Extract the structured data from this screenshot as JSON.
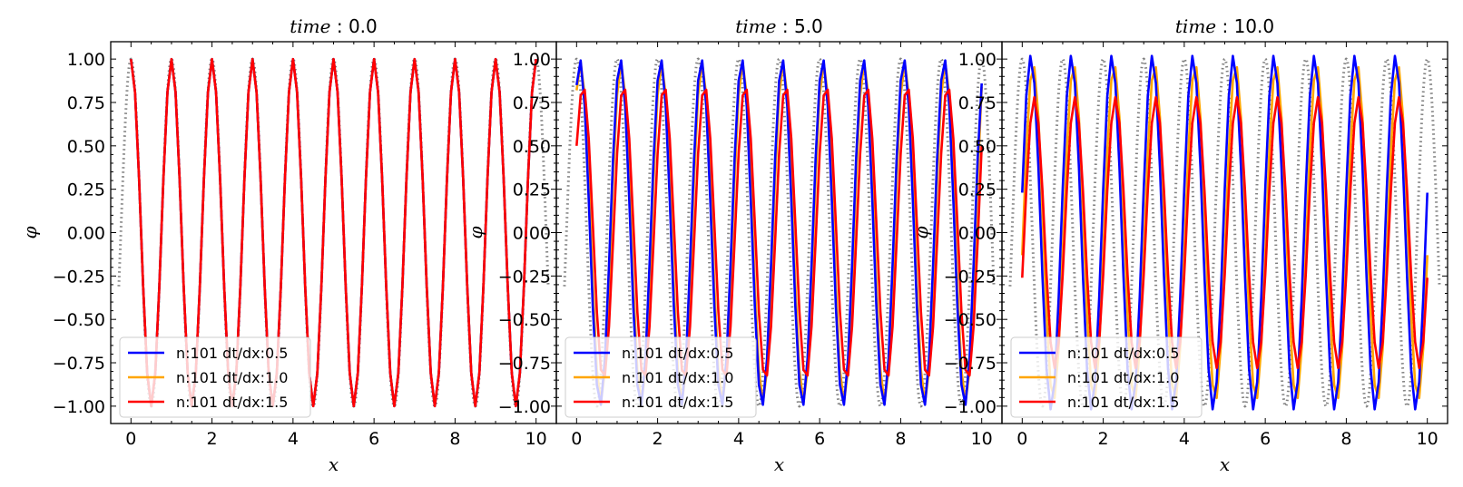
{
  "chart_data": [
    {
      "type": "line",
      "title": "time : 0.0",
      "title_italic": "time",
      "title_value": ": 0.0",
      "xlabel": "x",
      "ylabel": "φ",
      "xlim": [
        -0.5,
        10.5
      ],
      "ylim": [
        -1.1,
        1.1
      ],
      "xticks": [
        "0",
        "2",
        "4",
        "6",
        "8",
        "10"
      ],
      "yticks": [
        "1.00",
        "0.75",
        "0.50",
        "0.25",
        "0.00",
        "−0.25",
        "−0.50",
        "−0.75",
        "−1.00"
      ],
      "legend_position": "lower-left",
      "reference": {
        "style": "dotted",
        "color": "#808080",
        "function": "cos(2π(x − t))",
        "t": 0.0
      },
      "series": [
        {
          "name": "n:101 dt/dx:0.5",
          "color": "#0000ff",
          "x_start": 0,
          "x_end": 10,
          "amplitude": 1.0,
          "phase_shift": 0.0,
          "offset_start": 1.0,
          "offset_end": 1.0
        },
        {
          "name": "n:101 dt/dx:1.0",
          "color": "#ffa500",
          "x_start": 0,
          "x_end": 10,
          "amplitude": 1.0,
          "phase_shift": 0.0,
          "offset_start": 1.0,
          "offset_end": 1.0
        },
        {
          "name": "n:101 dt/dx:1.5",
          "color": "#ff0000",
          "x_start": 0,
          "x_end": 10,
          "amplitude": 1.0,
          "phase_shift": 0.0,
          "offset_start": 1.0,
          "offset_end": 1.0
        }
      ]
    },
    {
      "type": "line",
      "title": "time : 5.0",
      "title_italic": "time",
      "title_value": ": 5.0",
      "xlabel": "x",
      "ylabel": "φ",
      "xlim": [
        -0.5,
        10.5
      ],
      "ylim": [
        -1.1,
        1.1
      ],
      "xticks": [
        "0",
        "2",
        "4",
        "6",
        "8",
        "10"
      ],
      "yticks": [
        "1.00",
        "0.75",
        "0.50",
        "0.25",
        "0.00",
        "−0.25",
        "−0.50",
        "−0.75",
        "−1.00"
      ],
      "legend_position": "lower-left",
      "reference": {
        "style": "dotted",
        "color": "#808080",
        "function": "cos(2π(x − t))",
        "t": 5.0
      },
      "series": [
        {
          "name": "n:101 dt/dx:0.5",
          "color": "#0000ff",
          "x_start": 0,
          "x_end": 10,
          "amplitude": 1.0,
          "phase_shift": 0.08,
          "offset_start": 0.85,
          "offset_end": 0.86
        },
        {
          "name": "n:101 dt/dx:1.0",
          "color": "#ffa500",
          "x_start": 0,
          "x_end": 10,
          "amplitude": 0.98,
          "phase_shift": 0.1,
          "offset_start": 0.82,
          "offset_end": 0.84
        },
        {
          "name": "n:101 dt/dx:1.5",
          "color": "#ff0000",
          "x_start": 0,
          "x_end": 10,
          "amplitude": 0.85,
          "phase_shift": 0.16,
          "offset_start": 0.5,
          "offset_end": 0.5
        }
      ]
    },
    {
      "type": "line",
      "title": "time : 10.0",
      "title_italic": "time",
      "title_value": ": 10.0",
      "xlabel": "x",
      "ylabel": "φ",
      "xlim": [
        -0.5,
        10.5
      ],
      "ylim": [
        -1.1,
        1.1
      ],
      "xticks": [
        "0",
        "2",
        "4",
        "6",
        "8",
        "10"
      ],
      "yticks": [
        "1.00",
        "0.75",
        "0.50",
        "0.25",
        "0.00",
        "−0.25",
        "−0.50",
        "−0.75",
        "−1.00"
      ],
      "legend_position": "lower-left",
      "reference": {
        "style": "dotted",
        "color": "#808080",
        "function": "cos(2π(x − t))",
        "t": 10.0
      },
      "series": [
        {
          "name": "n:101 dt/dx:0.5",
          "color": "#0000ff",
          "x_start": 0,
          "x_end": 10,
          "amplitude": 1.02,
          "phase_shift": 0.21,
          "offset_start": 0.23,
          "offset_end": 0.23
        },
        {
          "name": "n:101 dt/dx:1.0",
          "color": "#ffa500",
          "x_start": 0,
          "x_end": 10,
          "amplitude": 0.97,
          "phase_shift": 0.27,
          "offset_start": -0.13,
          "offset_end": -0.13
        },
        {
          "name": "n:101 dt/dx:1.5",
          "color": "#ff0000",
          "x_start": 0,
          "x_end": 10,
          "amplitude": 0.78,
          "phase_shift": 0.3,
          "offset_start": -0.26,
          "offset_end": -0.26
        }
      ]
    }
  ]
}
